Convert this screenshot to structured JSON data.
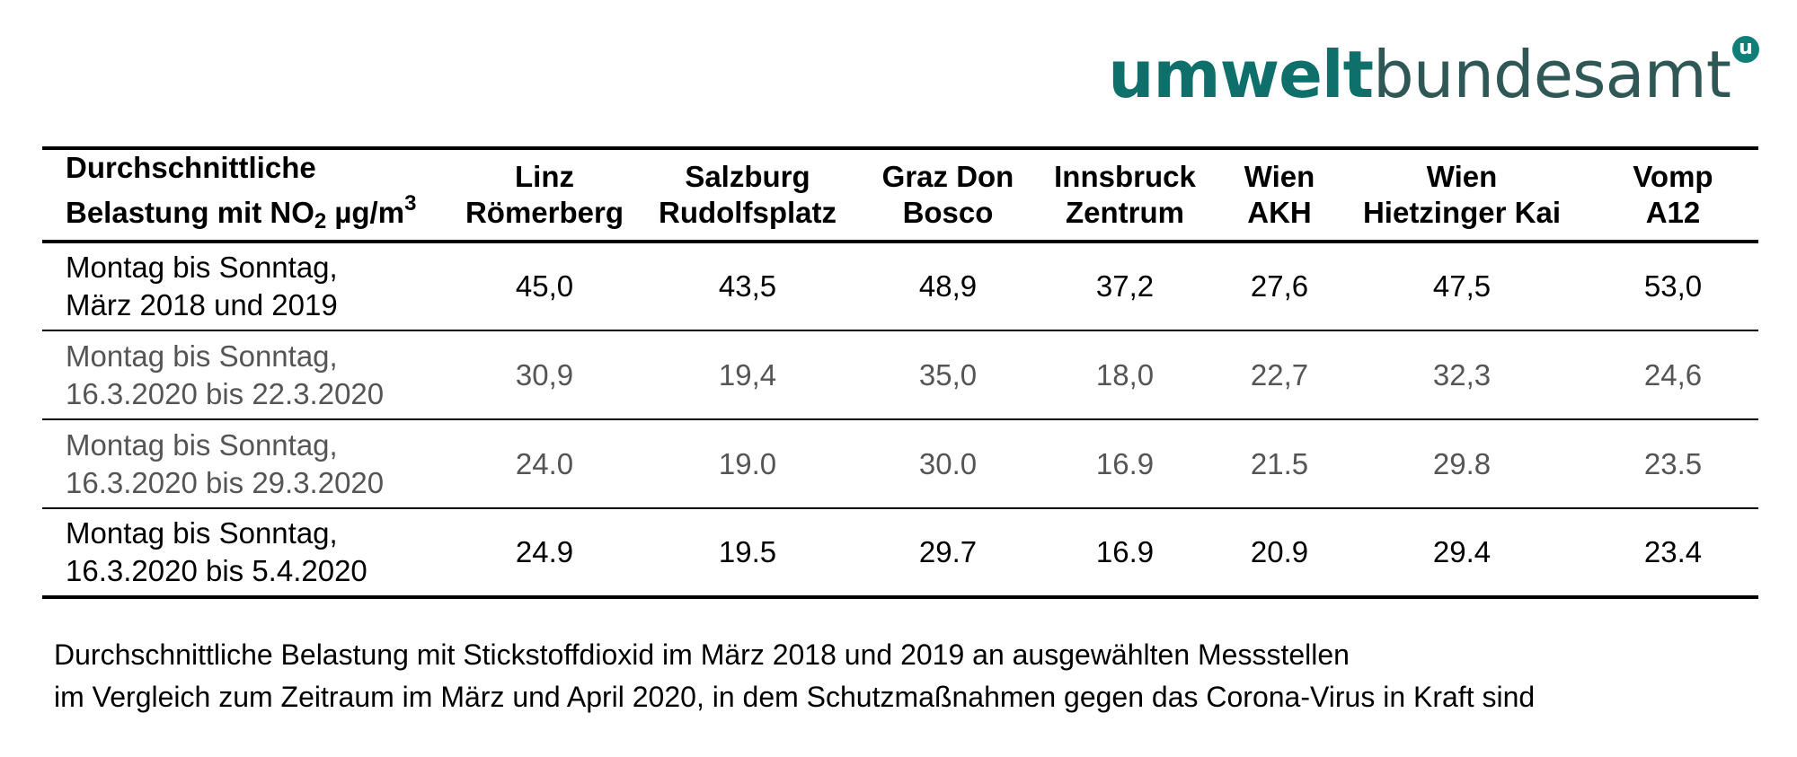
{
  "logo": {
    "bold": "umwelt",
    "light": "bundesamt",
    "badge": "u",
    "color": "#0f6f6b"
  },
  "table": {
    "header": {
      "label_line1": "Durchschnittliche",
      "label_line2_pre": "Belastung mit NO",
      "label_sub": "2",
      "label_unit": " µg/m",
      "label_sup": "3",
      "stations": [
        {
          "line1": "Linz",
          "line2": "Römerberg"
        },
        {
          "line1": "Salzburg",
          "line2": "Rudolfsplatz"
        },
        {
          "line1": "Graz Don",
          "line2": "Bosco"
        },
        {
          "line1": "Innsbruck",
          "line2": "Zentrum"
        },
        {
          "line1": "Wien",
          "line2": "AKH"
        },
        {
          "line1": "Wien",
          "line2": "Hietzinger Kai"
        },
        {
          "line1": "Vomp",
          "line2": "A12"
        }
      ]
    },
    "rows": [
      {
        "line1": "Montag bis Sonntag,",
        "line2": "März 2018 und 2019",
        "values": [
          "45,0",
          "43,5",
          "48,9",
          "37,2",
          "27,6",
          "47,5",
          "53,0"
        ]
      },
      {
        "line1": "Montag bis Sonntag,",
        "line2": "16.3.2020 bis 22.3.2020",
        "values": [
          "30,9",
          "19,4",
          "35,0",
          "18,0",
          "22,7",
          "32,3",
          "24,6"
        ]
      },
      {
        "line1": "Montag bis Sonntag,",
        "line2": "16.3.2020 bis 29.3.2020",
        "values": [
          "24.0",
          "19.0",
          "30.0",
          "16.9",
          "21.5",
          "29.8",
          "23.5"
        ]
      },
      {
        "line1": "Montag bis Sonntag,",
        "line2": "16.3.2020 bis 5.4.2020",
        "values": [
          "24.9",
          "19.5",
          "29.7",
          "16.9",
          "20.9",
          "29.4",
          "23.4"
        ]
      }
    ]
  },
  "caption": {
    "line1": "Durchschnittliche Belastung mit Stickstoffdioxid im März 2018 und 2019 an ausgewählten Messstellen",
    "line2": "im Vergleich zum Zeitraum im März und April 2020, in dem Schutzmaßnahmen gegen das Corona-Virus in Kraft sind"
  }
}
